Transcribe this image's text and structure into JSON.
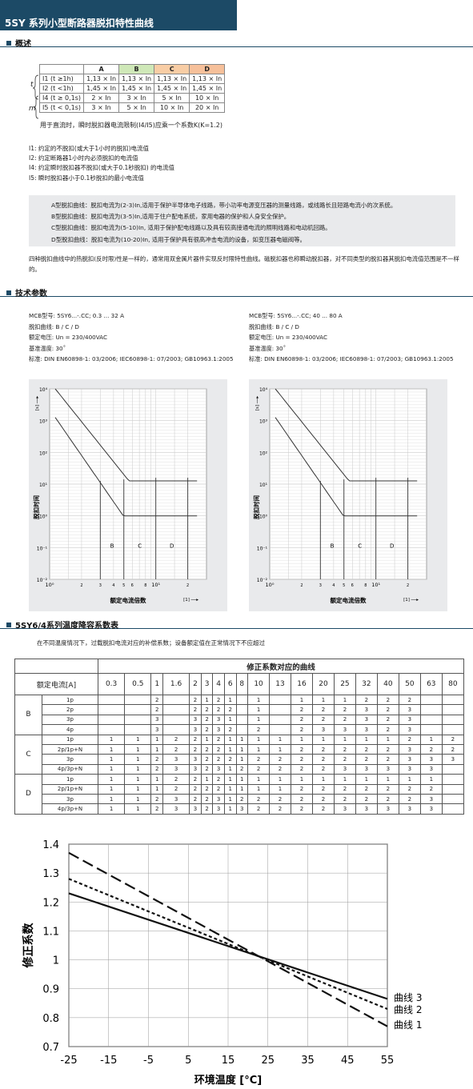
{
  "page_title": "5SY 系列小型断路器脱扣特性曲线",
  "sections": {
    "overview": "概述",
    "tech": "技术参数",
    "derating": "5SY6/4系列温度降容系数表"
  },
  "summary_table": {
    "headers": [
      "",
      "A",
      "B",
      "C",
      "D"
    ],
    "header_colors": [
      "#ffffff",
      "#ffffff",
      "#cfe8b8",
      "#f8cda5",
      "#f6c09a"
    ],
    "rows": [
      [
        "I1 (t ≥1h)",
        "1,13 × In",
        "1,13 × In",
        "1,13 × In",
        "1,13 × In"
      ],
      [
        "I2 (t <1h)",
        "1,45 × In",
        "1,45 × In",
        "1,45 × In",
        "1,45 × In"
      ],
      [
        "I4 (t ≥ 0,1s)",
        "2 × In",
        "3 × In",
        "5 × In",
        "10 × In"
      ],
      [
        "I5 (t < 0,1s)",
        "3 × In",
        "5 × In",
        "10 × In",
        "20 × In"
      ]
    ],
    "label_t": "t",
    "label_m": "m",
    "note": "用于直流时，瞬时脱扣器电流限制(I4/I5)应乘一个系数K(K=1.2)"
  },
  "definitions": [
    "I1: 约定的不脱扣(或大于1小时的脱扣)电流值",
    "I2: 约定断路器1小时内必须脱扣的电流值",
    "I4: 约定瞬时脱扣器不脱扣(或大于0.1秒脱扣) 的电流值",
    "I5: 瞬时脱扣器小于0.1秒脱扣的最小电流值"
  ],
  "curve_descriptions": [
    "A型脱扣曲线：脱扣电流为(2-3)In,适用于保护半导体电子线路，带小功率电源变压器的测量线路，或线路长且短路电流小的次系统。",
    "B型脱扣曲线：脱扣电流为(3-5)In,适用于住户配电系统，家用电器的保护和人身安全保护。",
    "C型脱扣曲线：脱扣电流为(5-10)In, 适用于保护配电线路以及具有较高接通电流的照明线路和电动机回路。",
    "D型脱扣曲线：脱扣电流为(10-20)In, 适用于保护具有很高冲击电流的设备，如变压器电磁阀等。"
  ],
  "paragraph": "四种脱扣曲线中的热脱扣(反时限)性是一样的，通常用双金属片器件实现反时限特性曲线。磁脱扣器也称瞬动脱扣器，对不同类型的脱扣器其脱扣电流值范围是不一样的。",
  "specs": [
    {
      "model": "MCB型号: 5SY6...-.CC; 0.3 ... 32 A",
      "curve": "脱扣曲线: B / C / D",
      "voltage": "额定电压: Un = 230/400VAC",
      "temp": "基准温度: 30˚",
      "standard": "标准: DIN EN60898-1: 03/2006; IEC60898-1: 07/2003; GB10963.1:2005"
    },
    {
      "model": "MCB型号: 5SY6...-.CC; 40 ... 80 A",
      "curve": "脱扣曲线: B / C / D",
      "voltage": "额定电压: Un = 230/400VAC",
      "temp": "基准温度: 30˚",
      "standard": "标准: DIN EN60898-1: 03/2006; IEC60898-1: 07/2003; GB10963.1:2005"
    }
  ],
  "trip_charts": [
    {
      "y_axis_label": "脱扣时间",
      "y_unit": "[s]",
      "x_axis_label": "额定电流倍数",
      "x_unit": "[1]",
      "y_ticks": [
        "10⁴",
        "10³",
        "10²",
        "10¹",
        "10⁰",
        "10⁻¹",
        "10⁻²"
      ],
      "x_ticks": [
        "10⁰",
        "2",
        "3",
        "4",
        "5",
        "6",
        "8",
        "10¹",
        "2"
      ],
      "zones": [
        "B",
        "C",
        "D"
      ]
    },
    {
      "y_axis_label": "脱扣时间",
      "y_unit": "[s]",
      "x_axis_label": "额定电流倍数",
      "x_unit": "[1]",
      "y_ticks": [
        "10⁴",
        "10³",
        "10²",
        "10¹",
        "10⁰",
        "10⁻¹",
        "10⁻²"
      ],
      "x_ticks": [
        "10⁰",
        "2",
        "3",
        "4",
        "5",
        "6",
        "8",
        "10¹",
        "2"
      ],
      "zones": [
        "B",
        "C",
        "D"
      ]
    }
  ],
  "derating_note": "在不同温度情况下，过载脱扣电流对应的补偿系数；设备额定值在正常情况下不应超过",
  "derating_table": {
    "title": "修正系数对应的曲线",
    "rated_current_label": "额定电流[A]",
    "currents": [
      "0.3",
      "0.5",
      "1",
      "1.6",
      "2",
      "3",
      "4",
      "6",
      "8",
      "10",
      "13",
      "16",
      "20",
      "25",
      "32",
      "40",
      "50",
      "63",
      "80"
    ],
    "groups": [
      {
        "curve": "B",
        "rows": [
          {
            "poles": "1p",
            "vals": [
              "",
              "",
              "2",
              "",
              "2",
              "1",
              "2",
              "1",
              "",
              "1",
              "",
              "1",
              "1",
              "1",
              "2",
              "2",
              "2",
              "",
              ""
            ]
          },
          {
            "poles": "2p",
            "vals": [
              "",
              "",
              "2",
              "",
              "2",
              "2",
              "2",
              "2",
              "",
              "1",
              "",
              "2",
              "2",
              "2",
              "3",
              "2",
              "3",
              "",
              ""
            ]
          },
          {
            "poles": "3p",
            "vals": [
              "",
              "",
              "3",
              "",
              "3",
              "2",
              "3",
              "1",
              "",
              "1",
              "",
              "2",
              "2",
              "2",
              "3",
              "2",
              "3",
              "",
              ""
            ]
          },
          {
            "poles": "4p",
            "vals": [
              "",
              "",
              "3",
              "",
              "3",
              "2",
              "3",
              "2",
              "",
              "2",
              "",
              "2",
              "3",
              "3",
              "3",
              "2",
              "3",
              "",
              ""
            ]
          }
        ]
      },
      {
        "curve": "C",
        "rows": [
          {
            "poles": "1p",
            "vals": [
              "1",
              "1",
              "1",
              "2",
              "2",
              "1",
              "2",
              "1",
              "1",
              "1",
              "1",
              "1",
              "1",
              "1",
              "1",
              "1",
              "2",
              "1",
              "2"
            ]
          },
          {
            "poles": "2p/1p+N",
            "vals": [
              "1",
              "1",
              "1",
              "2",
              "2",
              "2",
              "2",
              "1",
              "1",
              "1",
              "1",
              "2",
              "2",
              "2",
              "2",
              "2",
              "3",
              "2",
              "2"
            ]
          },
          {
            "poles": "3p",
            "vals": [
              "1",
              "1",
              "2",
              "3",
              "3",
              "2",
              "2",
              "2",
              "1",
              "2",
              "2",
              "2",
              "2",
              "2",
              "2",
              "2",
              "3",
              "3",
              "3"
            ]
          },
          {
            "poles": "4p/3p+N",
            "vals": [
              "1",
              "1",
              "2",
              "3",
              "3",
              "2",
              "3",
              "1",
              "2",
              "2",
              "2",
              "2",
              "2",
              "3",
              "3",
              "3",
              "3",
              "3",
              ""
            ]
          }
        ]
      },
      {
        "curve": "D",
        "rows": [
          {
            "poles": "1p",
            "vals": [
              "1",
              "1",
              "1",
              "2",
              "2",
              "1",
              "2",
              "1",
              "1",
              "1",
              "1",
              "1",
              "1",
              "1",
              "1",
              "1",
              "1",
              "1",
              ""
            ]
          },
          {
            "poles": "2p/1p+N",
            "vals": [
              "1",
              "1",
              "1",
              "2",
              "2",
              "2",
              "2",
              "1",
              "1",
              "1",
              "1",
              "2",
              "2",
              "2",
              "2",
              "2",
              "2",
              "2",
              ""
            ]
          },
          {
            "poles": "3p",
            "vals": [
              "1",
              "1",
              "2",
              "3",
              "2",
              "2",
              "3",
              "1",
              "2",
              "2",
              "2",
              "2",
              "2",
              "2",
              "2",
              "2",
              "2",
              "3",
              ""
            ]
          },
          {
            "poles": "4p/3p+N",
            "vals": [
              "1",
              "1",
              "2",
              "3",
              "3",
              "2",
              "3",
              "1",
              "3",
              "2",
              "2",
              "2",
              "2",
              "3",
              "3",
              "3",
              "3",
              "3",
              ""
            ]
          }
        ]
      }
    ]
  },
  "chart_data": {
    "type": "line",
    "xlabel": "环境温度 [°C]",
    "ylabel": "修正系数",
    "x": [
      -25,
      55
    ],
    "xticks": [
      -25,
      -15,
      -5,
      5,
      15,
      25,
      35,
      45,
      55
    ],
    "yticks": [
      0.7,
      0.8,
      0.9,
      1,
      1.1,
      1.2,
      1.3,
      1.4
    ],
    "ylim": [
      0.7,
      1.4
    ],
    "xlim": [
      -25,
      55
    ],
    "grid": true,
    "series": [
      {
        "name": "曲线 1",
        "values": [
          1.37,
          0.77
        ],
        "dash": "long"
      },
      {
        "name": "曲线 2",
        "values": [
          1.28,
          0.83
        ],
        "dash": "short"
      },
      {
        "name": "曲线 3",
        "values": [
          1.23,
          0.865
        ],
        "dash": "solid"
      }
    ]
  }
}
